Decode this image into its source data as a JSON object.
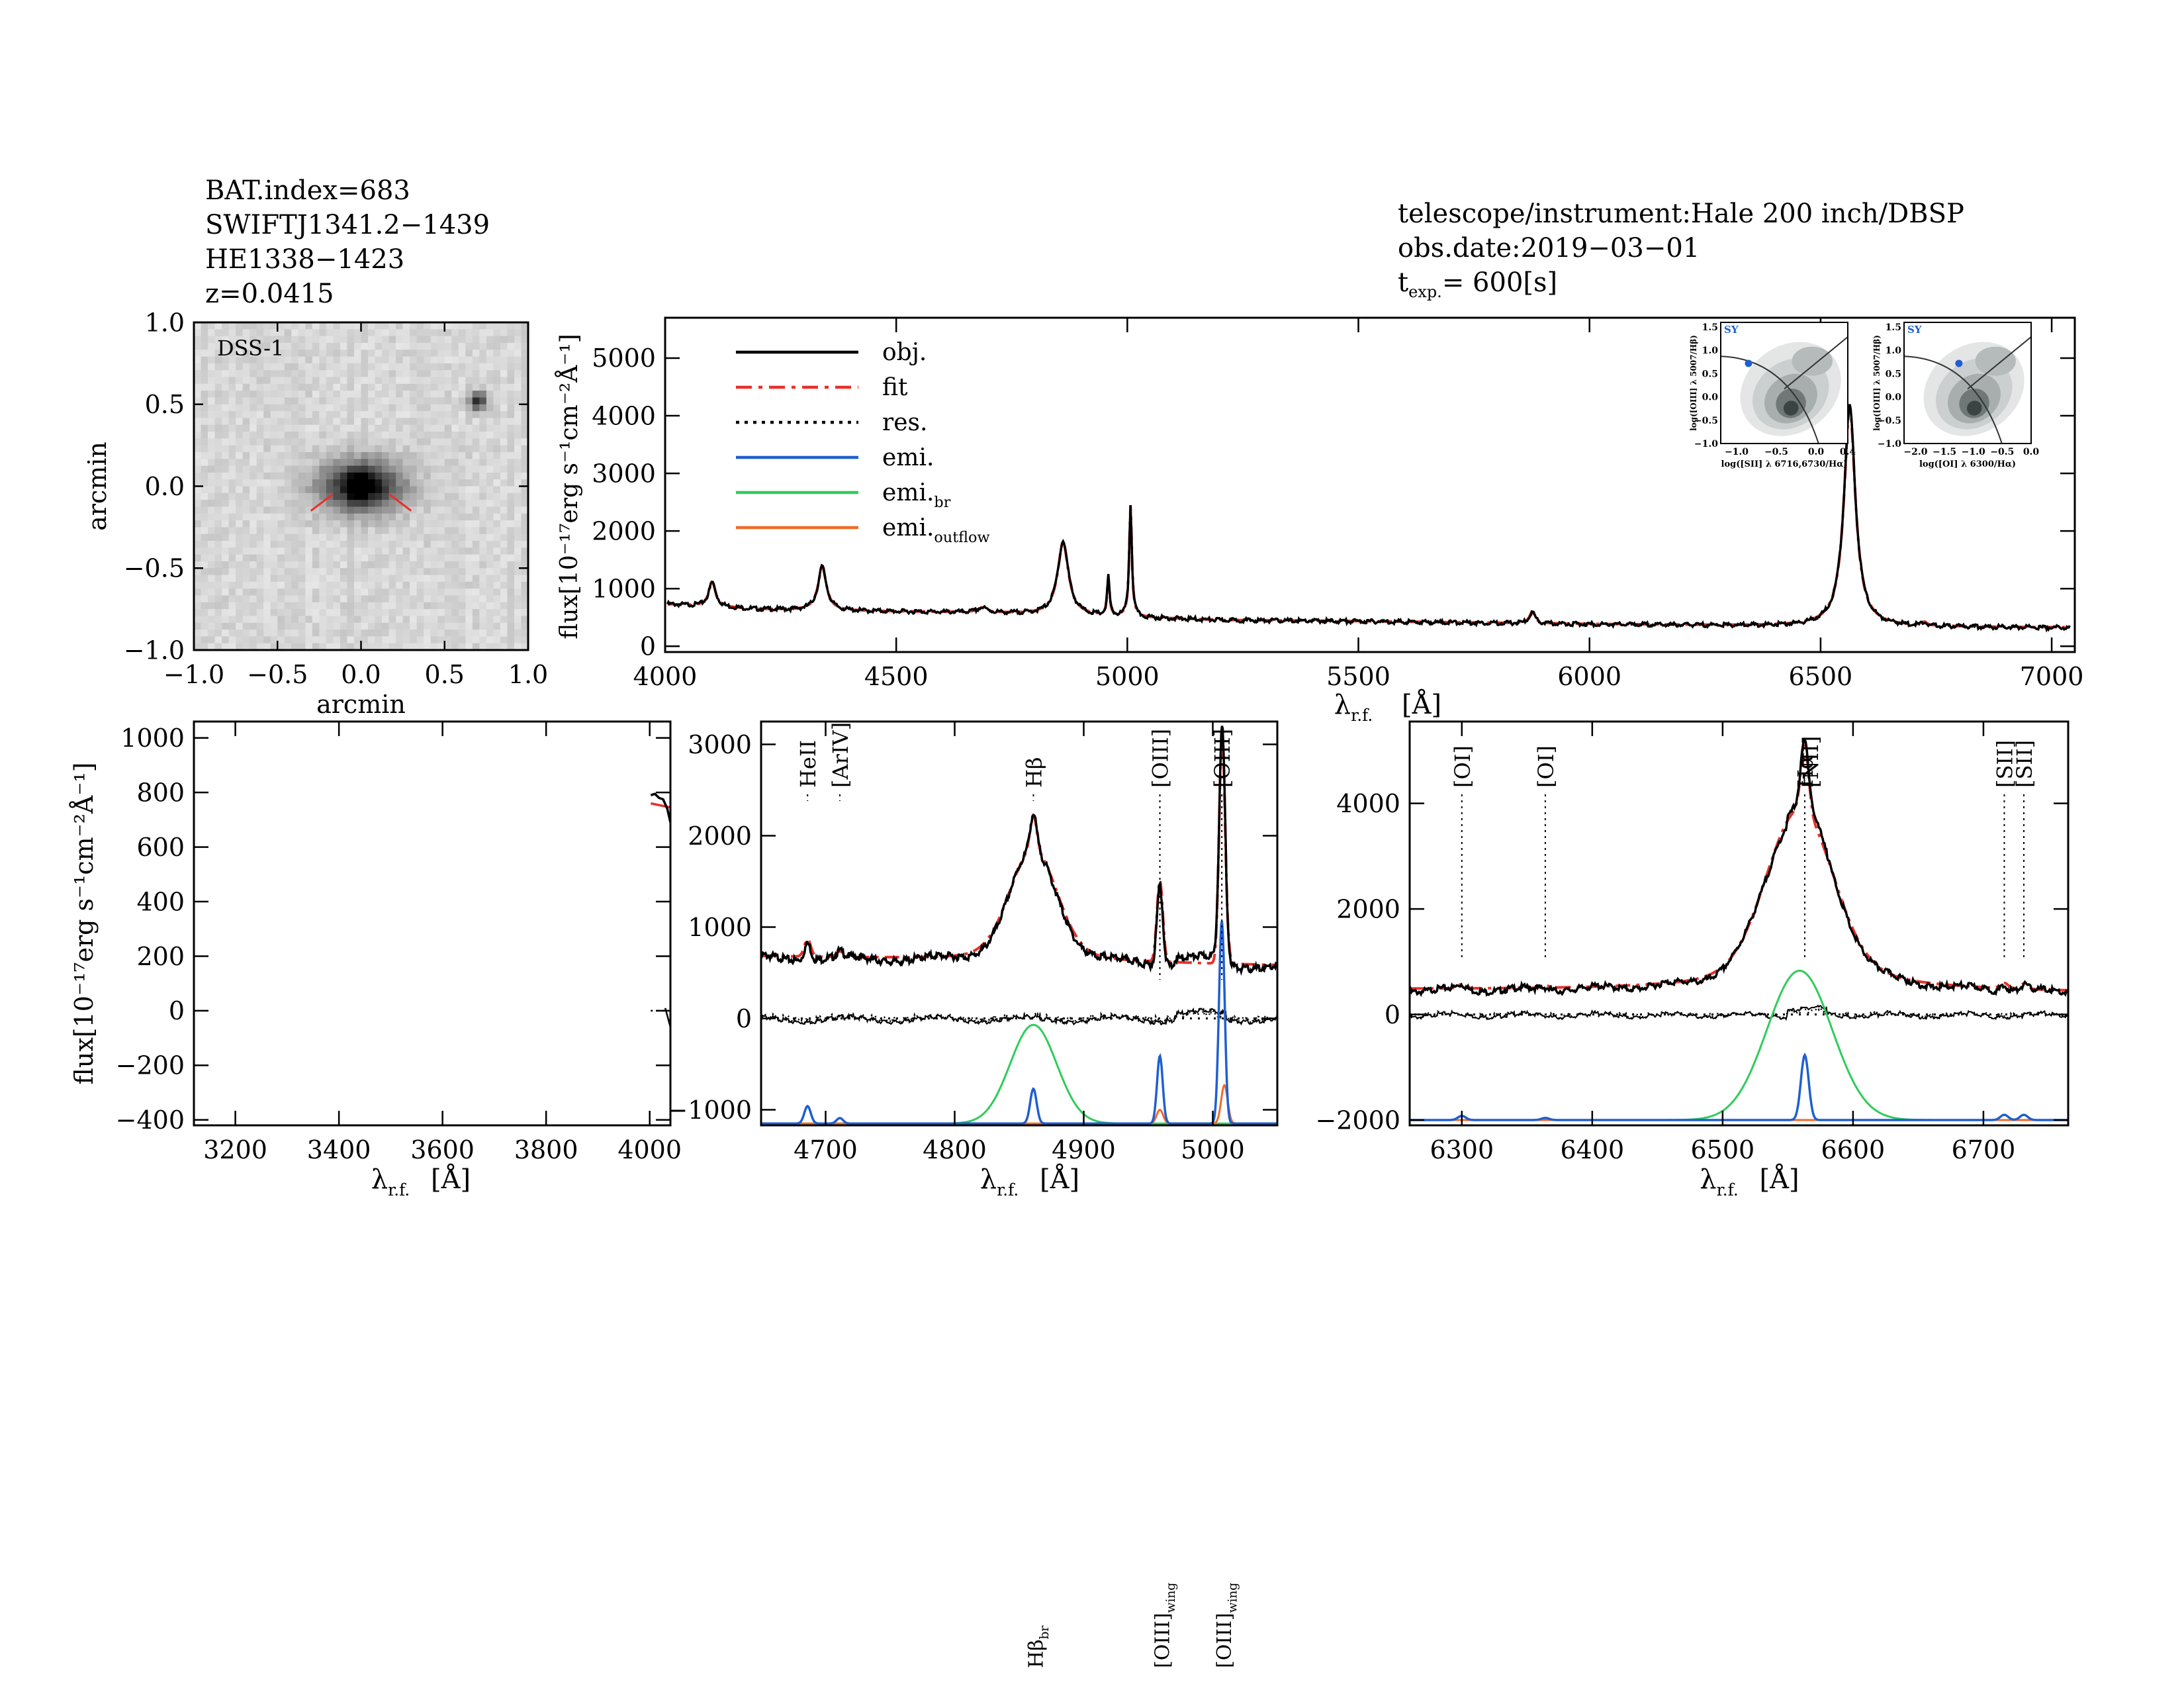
{
  "header_left": {
    "bat_index": "BAT.index=683",
    "swift_name": "SWIFTJ1341.2−1439",
    "counterpart": "HE1338−1423",
    "redshift": "z=0.0415"
  },
  "header_right": {
    "instrument": "telescope/instrument:Hale 200 inch/DBSP",
    "obs_date": "obs.date:2019−03−01",
    "exposure_label": "t",
    "exposure_sub": "exp.",
    "exposure_value": "= 600[s]"
  },
  "colors": {
    "obj": "#000000",
    "fit": "#e8302a",
    "res": "#000000",
    "emi": "#1f5fd0",
    "emi_br": "#2ecc5a",
    "emi_outflow": "#f06a2a"
  },
  "chart_data": [
    {
      "id": "image",
      "type": "heatmap",
      "title": "DSS-1",
      "xlabel": "arcmin",
      "ylabel": "arcmin",
      "xlim": [
        -1.0,
        1.0
      ],
      "ylim": [
        -1.0,
        1.0
      ],
      "xticks": [
        "−1.0",
        "−0.5",
        "0.0",
        "0.5",
        "1.0"
      ],
      "yticks": [
        "1.0",
        "0.5",
        "0.0",
        "−0.5",
        "−1.0"
      ],
      "sources": [
        {
          "name": "target",
          "x": 0.0,
          "y": 0.0,
          "strength": 1.0
        },
        {
          "name": "star",
          "x": 0.7,
          "y": 0.52,
          "strength": 0.85
        }
      ]
    },
    {
      "id": "full",
      "type": "line",
      "xlabel": "λr.f.[Å]",
      "ylabel": "flux[10⁻¹⁷erg s⁻¹cm⁻²Å⁻¹]",
      "xlim": [
        4000,
        7050
      ],
      "ylim": [
        -100,
        5700
      ],
      "xticks": [
        4000,
        4500,
        5000,
        5500,
        6000,
        6500,
        7000
      ],
      "yticks": [
        0,
        1000,
        2000,
        3000,
        4000,
        5000
      ],
      "continuum": [
        [
          4000,
          750
        ],
        [
          4200,
          660
        ],
        [
          4400,
          630
        ],
        [
          4700,
          600
        ],
        [
          5000,
          520
        ],
        [
          5200,
          470
        ],
        [
          5500,
          450
        ],
        [
          6000,
          400
        ],
        [
          6500,
          360
        ],
        [
          7000,
          340
        ]
      ],
      "lines": [
        {
          "wave": 4102,
          "amp": 430,
          "width": 9
        },
        {
          "wave": 4340,
          "amp": 760,
          "width": 11
        },
        {
          "wave": 4686,
          "amp": 80,
          "width": 12
        },
        {
          "wave": 4861,
          "amp": 1280,
          "width": 14
        },
        {
          "wave": 4959,
          "amp": 680,
          "width": 3
        },
        {
          "wave": 5007,
          "amp": 1950,
          "width": 3.5
        },
        {
          "wave": 5876,
          "amp": 200,
          "width": 7
        },
        {
          "wave": 6563,
          "amp": 3830,
          "width": 15
        },
        {
          "wave": 6725,
          "amp": 60,
          "width": 6
        }
      ],
      "legend": [
        {
          "key": "obj",
          "label": "obj.",
          "style": "solid"
        },
        {
          "key": "fit",
          "label": "fit",
          "style": "dashdot"
        },
        {
          "key": "res",
          "label": "res.",
          "style": "dotted"
        },
        {
          "key": "emi",
          "label": "emi.",
          "style": "solid"
        },
        {
          "key": "emi_br",
          "label": "emi.",
          "sub": "br",
          "style": "solid"
        },
        {
          "key": "emi_outflow",
          "label": "emi.",
          "sub": "outflow",
          "style": "solid"
        }
      ],
      "legend_position": "top-left"
    },
    {
      "id": "bpt1",
      "type": "scatter",
      "tag": "SY",
      "xlabel": "log([SII] λ 6716,6730/Hα)",
      "ylabel": "log([OIII] λ 5007/Hβ)",
      "xlim": [
        -1.2,
        0.4
      ],
      "ylim": [
        -1.0,
        1.6
      ],
      "xticks": [
        "−1.0",
        "−0.5",
        "0.0",
        "0.4"
      ],
      "yticks": [
        "1.5",
        "1.0",
        "0.5",
        "0.0",
        "−0.5",
        "−1.0"
      ],
      "point": [
        -0.85,
        0.72
      ]
    },
    {
      "id": "bpt2",
      "type": "scatter",
      "tag": "SY",
      "xlabel": "log([OI] λ 6300/Hα)",
      "ylabel": "log([OIII] λ 5007/Hβ)",
      "xlim": [
        -2.2,
        0.0
      ],
      "ylim": [
        -1.0,
        1.6
      ],
      "xticks": [
        "−2.0",
        "−1.5",
        "−1.0",
        "−0.5",
        "0.0"
      ],
      "yticks": [
        "1.5",
        "1.0",
        "0.5",
        "0.0",
        "−0.5",
        "−1.0"
      ],
      "point": [
        -1.25,
        0.72
      ]
    },
    {
      "id": "zoom1",
      "type": "line",
      "xlabel": "λr.f.[Å]",
      "ylabel": "flux[10⁻¹⁷erg s⁻¹cm⁻²Å⁻¹]",
      "xlim": [
        3120,
        4040
      ],
      "ylim": [
        -420,
        1060
      ],
      "xticks": [
        3200,
        3400,
        3600,
        3800,
        4000
      ],
      "yticks": [
        -400,
        -200,
        0,
        200,
        400,
        600,
        800,
        1000
      ],
      "obj": [
        [
          4002,
          790
        ],
        [
          4010,
          795
        ],
        [
          4018,
          780
        ],
        [
          4026,
          775
        ],
        [
          4034,
          740
        ],
        [
          4040,
          690
        ]
      ],
      "fit": [
        [
          4002,
          760
        ],
        [
          4040,
          745
        ]
      ]
    },
    {
      "id": "zoom2",
      "type": "line",
      "xlabel": "λr.f.[Å]",
      "xlim": [
        4650,
        5050
      ],
      "ylim": [
        -1170,
        3250
      ],
      "xticks": [
        4700,
        4800,
        4900,
        5000
      ],
      "yticks": [
        -1000,
        0,
        1000,
        2000,
        3000
      ],
      "baseline": -1150,
      "line_labels": [
        {
          "text": "HeII",
          "wave": 4686,
          "pos": "top"
        },
        {
          "text": "[ArIV]",
          "wave": 4711,
          "pos": "top"
        },
        {
          "text": "Hβ",
          "wave": 4861,
          "pos": "top"
        },
        {
          "text": "[OIII]",
          "wave": 4959,
          "pos": "top"
        },
        {
          "text": "[OIII]",
          "wave": 5007,
          "pos": "top"
        },
        {
          "text": "Hβbr",
          "wave": 4861,
          "pos": "mid"
        },
        {
          "text": "[OIII]wing",
          "wave": 4959,
          "pos": "mid"
        },
        {
          "text": "[OIII]wing",
          "wave": 5007,
          "pos": "mid"
        }
      ],
      "components": {
        "emi": [
          {
            "wave": 4686,
            "amp": 190,
            "width": 2.5
          },
          {
            "wave": 4711,
            "amp": 60,
            "width": 2.5
          },
          {
            "wave": 4861,
            "amp": 380,
            "width": 2.5
          },
          {
            "wave": 4959,
            "amp": 740,
            "width": 2.2
          },
          {
            "wave": 5007,
            "amp": 2220,
            "width": 2.2
          }
        ],
        "emi_br": [
          {
            "wave": 4861,
            "amp": 1080,
            "width": 18
          }
        ],
        "emi_outflow": [
          {
            "wave": 4959,
            "amp": 150,
            "width": 2.5
          },
          {
            "wave": 5009,
            "amp": 420,
            "width": 2.5
          }
        ]
      }
    },
    {
      "id": "zoom3",
      "type": "line",
      "xlabel": "λr.f.[Å]",
      "xlim": [
        6260,
        6765
      ],
      "ylim": [
        -2100,
        5550
      ],
      "xticks": [
        6300,
        6400,
        6500,
        6600,
        6700
      ],
      "yticks": [
        -2000,
        0,
        2000,
        4000
      ],
      "baseline": -2000,
      "line_labels": [
        {
          "text": "[OI]",
          "wave": 6300,
          "pos": "top"
        },
        {
          "text": "[OI]",
          "wave": 6364,
          "pos": "top"
        },
        {
          "text": "Hα",
          "wave": 6563,
          "pos": "top"
        },
        {
          "text": "[NII]",
          "wave": 6563,
          "pos": "top2"
        },
        {
          "text": "[SII]",
          "wave": 6716,
          "pos": "top"
        },
        {
          "text": "[SII]",
          "wave": 6731,
          "pos": "top"
        }
      ],
      "components": {
        "emi": [
          {
            "wave": 6300,
            "amp": 80,
            "width": 3
          },
          {
            "wave": 6364,
            "amp": 40,
            "width": 3
          },
          {
            "wave": 6563,
            "amp": 1230,
            "width": 3
          },
          {
            "wave": 6716,
            "amp": 100,
            "width": 3
          },
          {
            "wave": 6731,
            "amp": 100,
            "width": 3
          }
        ],
        "emi_br": [
          {
            "wave": 6559,
            "amp": 2830,
            "width": 25
          }
        ],
        "emi_outflow": []
      }
    }
  ]
}
